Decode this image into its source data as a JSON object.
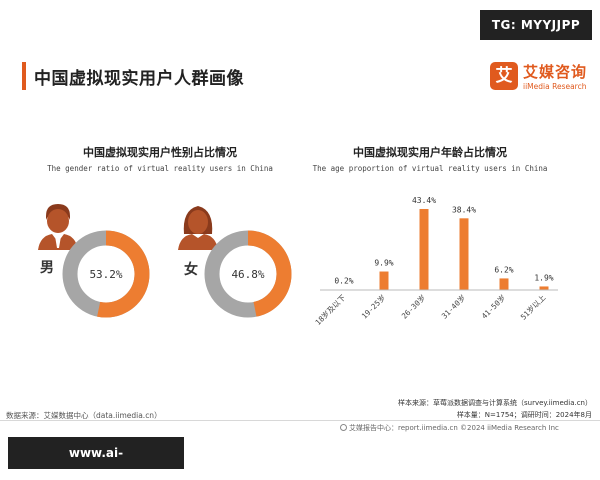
{
  "watermark_top": "TG: MYYJJPP",
  "watermark_bottom": "www.ai-clubworldcup.com",
  "page_title": "中国虚拟现实用户人群画像",
  "brand": {
    "mark": "艾",
    "name_cn": "艾媒咨询",
    "name_en": "iiMedia Research",
    "color": "#e05a1e"
  },
  "colors": {
    "accent": "#ed7d31",
    "gray": "#a6a6a6",
    "icon": "#b5542a"
  },
  "chart_data": [
    {
      "type": "pie",
      "title": "中国虚拟现实用户性别占比情况",
      "subtitle": "The gender ratio of virtual reality users in China",
      "donut": true,
      "slices": [
        {
          "label": "男",
          "value": 53.2,
          "display": "53.2%",
          "icon": "male-user-icon"
        },
        {
          "label": "女",
          "value": 46.8,
          "display": "46.8%",
          "icon": "female-user-icon"
        }
      ]
    },
    {
      "type": "bar",
      "title": "中国虚拟现实用户年龄占比情况",
      "subtitle": "The age proportion of virtual reality users in China",
      "categories": [
        "18岁及以下",
        "19-25岁",
        "26-30岁",
        "31-40岁",
        "41-50岁",
        "51岁以上"
      ],
      "values": [
        0.2,
        9.9,
        43.4,
        38.4,
        6.2,
        1.9
      ],
      "value_labels": [
        "0.2%",
        "9.9%",
        "43.4%",
        "38.4%",
        "6.2%",
        "1.9%"
      ],
      "ylim": [
        0,
        45
      ],
      "grid": false
    }
  ],
  "footer": {
    "source_left": "数据来源：艾媒数据中心（data.iimedia.cn）",
    "sample_source": "样本来源：草莓派数据调查与计算系统（survey.iimedia.cn）",
    "sample_size": "样本量：N=1754；调研时间：2024年8月",
    "bottom": "艾媒报告中心：report.iimedia.cn    ©2024    iiMedia Research Inc"
  }
}
